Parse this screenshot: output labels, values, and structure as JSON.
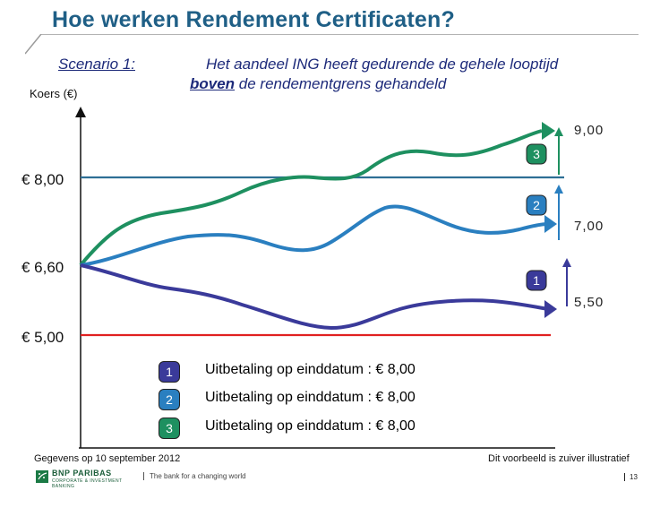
{
  "title": "Hoe werken Rendement Certificaten?",
  "scenario_label": "Scenario 1:",
  "description": {
    "line1": "Het aandeel ING heeft gedurende de gehele looptijd",
    "line2_highlight": "boven",
    "line2_rest": " de rendementgrens gehandeld"
  },
  "chart_data": {
    "type": "line",
    "ylabel": "Koers (€)",
    "levels": [
      {
        "label": "€ 8,00",
        "value": 8.0,
        "color": "#2e6f95"
      },
      {
        "label": "€ 6,60",
        "value": 6.6,
        "color": "#222222"
      },
      {
        "label": "€ 5,00",
        "value": 5.0,
        "color": "#e02020"
      }
    ],
    "end_values": [
      {
        "label": "9,00",
        "value": 9.0,
        "scenario": "3"
      },
      {
        "label": "7,00",
        "value": 7.0,
        "scenario": "2"
      },
      {
        "label": "5,50",
        "value": 5.5,
        "scenario": "1"
      }
    ],
    "series": [
      {
        "id": "1",
        "color": "#3a3a9a",
        "start": 6.6,
        "end": 5.5
      },
      {
        "id": "2",
        "color": "#2a7fc0",
        "start": 6.6,
        "end": 7.0
      },
      {
        "id": "3",
        "color": "#1e9060",
        "start": 6.6,
        "end": 9.0
      }
    ]
  },
  "legend": [
    {
      "badge": "1",
      "color": "#3a3a9a",
      "text": "Uitbetaling op einddatum : € 8,00"
    },
    {
      "badge": "2",
      "color": "#2a7fc0",
      "text": "Uitbetaling op einddatum : € 8,00"
    },
    {
      "badge": "3",
      "color": "#1e9060",
      "text": "Uitbetaling op einddatum : € 8,00"
    }
  ],
  "footer": {
    "source_note": "Gegevens op 10 september 2012",
    "disclaimer": "Dit voorbeeld is zuiver illustratief",
    "brand": "BNP PARIBAS",
    "brand_sub": "CORPORATE & INVESTMENT BANKING",
    "tagline": "The bank for a changing world",
    "page": "13"
  }
}
